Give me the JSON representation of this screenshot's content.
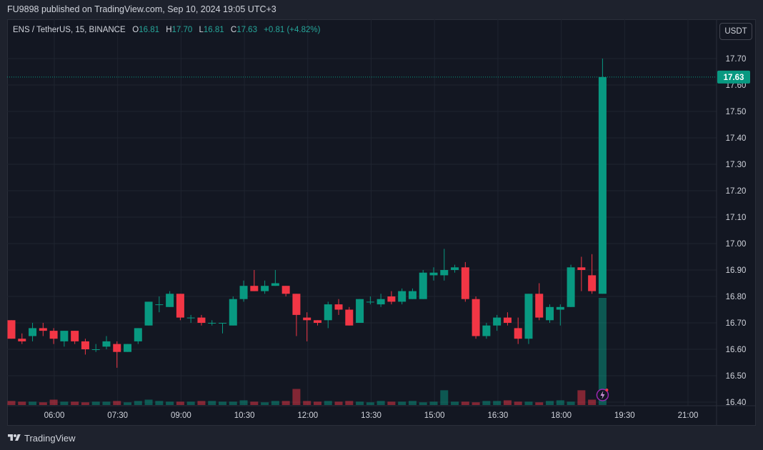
{
  "header": {
    "published_text": "FU9898 published on TradingView.com, Sep 10, 2024 19:05 UTC+3"
  },
  "legend": {
    "symbol": "ENS / TetherUS, 15, BINANCE",
    "open_label": "O",
    "open": "16.81",
    "high_label": "H",
    "high": "17.70",
    "low_label": "L",
    "low": "16.81",
    "close_label": "C",
    "close": "17.63",
    "change": "+0.81 (+4.82%)"
  },
  "currency_button": "USDT",
  "footer": {
    "brand": "TradingView"
  },
  "colors": {
    "up": "#089981",
    "down": "#f23645",
    "background": "#131722",
    "grid": "#1f2430",
    "text": "#d1d4dc"
  },
  "chart_data": {
    "type": "candlestick",
    "y_ticks": [
      "17.70",
      "17.60",
      "17.50",
      "17.40",
      "17.30",
      "17.20",
      "17.10",
      "17.00",
      "16.90",
      "16.80",
      "16.70",
      "16.60",
      "16.50",
      "16.40"
    ],
    "ylim": [
      16.4,
      17.7
    ],
    "x_ticks": [
      "06:00",
      "07:30",
      "09:00",
      "10:30",
      "12:00",
      "13:30",
      "15:00",
      "16:30",
      "18:00",
      "19:30",
      "21:00"
    ],
    "last_price_label": "17.63",
    "candles": [
      {
        "o": 16.71,
        "h": 16.71,
        "l": 16.64,
        "c": 16.64
      },
      {
        "o": 16.64,
        "h": 16.66,
        "l": 16.62,
        "c": 16.63
      },
      {
        "o": 16.65,
        "h": 16.7,
        "l": 16.63,
        "c": 16.68
      },
      {
        "o": 16.68,
        "h": 16.7,
        "l": 16.65,
        "c": 16.67
      },
      {
        "o": 16.67,
        "h": 16.68,
        "l": 16.62,
        "c": 16.64
      },
      {
        "o": 16.63,
        "h": 16.67,
        "l": 16.61,
        "c": 16.67
      },
      {
        "o": 16.67,
        "h": 16.67,
        "l": 16.62,
        "c": 16.63
      },
      {
        "o": 16.63,
        "h": 16.64,
        "l": 16.58,
        "c": 16.6
      },
      {
        "o": 16.6,
        "h": 16.62,
        "l": 16.59,
        "c": 16.6
      },
      {
        "o": 16.61,
        "h": 16.65,
        "l": 16.6,
        "c": 16.63
      },
      {
        "o": 16.62,
        "h": 16.63,
        "l": 16.53,
        "c": 16.59
      },
      {
        "o": 16.59,
        "h": 16.62,
        "l": 16.59,
        "c": 16.62
      },
      {
        "o": 16.63,
        "h": 16.68,
        "l": 16.62,
        "c": 16.68
      },
      {
        "o": 16.69,
        "h": 16.78,
        "l": 16.69,
        "c": 16.78
      },
      {
        "o": 16.77,
        "h": 16.8,
        "l": 16.74,
        "c": 16.77
      },
      {
        "o": 16.76,
        "h": 16.82,
        "l": 16.76,
        "c": 16.81
      },
      {
        "o": 16.81,
        "h": 16.81,
        "l": 16.71,
        "c": 16.72
      },
      {
        "o": 16.72,
        "h": 16.73,
        "l": 16.7,
        "c": 16.72
      },
      {
        "o": 16.72,
        "h": 16.73,
        "l": 16.69,
        "c": 16.7
      },
      {
        "o": 16.7,
        "h": 16.71,
        "l": 16.69,
        "c": 16.7
      },
      {
        "o": 16.7,
        "h": 16.7,
        "l": 16.66,
        "c": 16.7
      },
      {
        "o": 16.69,
        "h": 16.8,
        "l": 16.69,
        "c": 16.79
      },
      {
        "o": 16.79,
        "h": 16.86,
        "l": 16.78,
        "c": 16.84
      },
      {
        "o": 16.84,
        "h": 16.9,
        "l": 16.82,
        "c": 16.82
      },
      {
        "o": 16.82,
        "h": 16.86,
        "l": 16.81,
        "c": 16.84
      },
      {
        "o": 16.84,
        "h": 16.9,
        "l": 16.84,
        "c": 16.85
      },
      {
        "o": 16.84,
        "h": 16.84,
        "l": 16.8,
        "c": 16.81
      },
      {
        "o": 16.81,
        "h": 16.81,
        "l": 16.65,
        "c": 16.73
      },
      {
        "o": 16.72,
        "h": 16.74,
        "l": 16.63,
        "c": 16.71
      },
      {
        "o": 16.71,
        "h": 16.71,
        "l": 16.69,
        "c": 16.7
      },
      {
        "o": 16.71,
        "h": 16.78,
        "l": 16.68,
        "c": 16.77
      },
      {
        "o": 16.77,
        "h": 16.79,
        "l": 16.73,
        "c": 16.75
      },
      {
        "o": 16.75,
        "h": 16.76,
        "l": 16.69,
        "c": 16.69
      },
      {
        "o": 16.7,
        "h": 16.79,
        "l": 16.7,
        "c": 16.79
      },
      {
        "o": 16.78,
        "h": 16.8,
        "l": 16.77,
        "c": 16.78
      },
      {
        "o": 16.77,
        "h": 16.81,
        "l": 16.76,
        "c": 16.79
      },
      {
        "o": 16.8,
        "h": 16.82,
        "l": 16.77,
        "c": 16.78
      },
      {
        "o": 16.78,
        "h": 16.83,
        "l": 16.77,
        "c": 16.82
      },
      {
        "o": 16.79,
        "h": 16.83,
        "l": 16.79,
        "c": 16.82
      },
      {
        "o": 16.79,
        "h": 16.9,
        "l": 16.79,
        "c": 16.89
      },
      {
        "o": 16.88,
        "h": 16.91,
        "l": 16.86,
        "c": 16.89
      },
      {
        "o": 16.88,
        "h": 16.98,
        "l": 16.86,
        "c": 16.9
      },
      {
        "o": 16.9,
        "h": 16.92,
        "l": 16.89,
        "c": 16.91
      },
      {
        "o": 16.91,
        "h": 16.93,
        "l": 16.78,
        "c": 16.79
      },
      {
        "o": 16.79,
        "h": 16.8,
        "l": 16.64,
        "c": 16.65
      },
      {
        "o": 16.65,
        "h": 16.7,
        "l": 16.64,
        "c": 16.69
      },
      {
        "o": 16.69,
        "h": 16.73,
        "l": 16.67,
        "c": 16.72
      },
      {
        "o": 16.72,
        "h": 16.74,
        "l": 16.69,
        "c": 16.7
      },
      {
        "o": 16.68,
        "h": 16.72,
        "l": 16.62,
        "c": 16.64
      },
      {
        "o": 16.64,
        "h": 16.81,
        "l": 16.62,
        "c": 16.81
      },
      {
        "o": 16.81,
        "h": 16.85,
        "l": 16.71,
        "c": 16.72
      },
      {
        "o": 16.71,
        "h": 16.77,
        "l": 16.7,
        "c": 16.76
      },
      {
        "o": 16.75,
        "h": 16.77,
        "l": 16.69,
        "c": 16.76
      },
      {
        "o": 16.76,
        "h": 16.92,
        "l": 16.76,
        "c": 16.91
      },
      {
        "o": 16.91,
        "h": 16.95,
        "l": 16.82,
        "c": 16.9
      },
      {
        "o": 16.88,
        "h": 16.96,
        "l": 16.81,
        "c": 16.82
      },
      {
        "o": 16.81,
        "h": 17.7,
        "l": 16.81,
        "c": 17.63
      }
    ],
    "volume": [
      6,
      5,
      5,
      4,
      8,
      5,
      5,
      4,
      5,
      5,
      6,
      4,
      6,
      8,
      6,
      5,
      5,
      5,
      6,
      6,
      5,
      5,
      7,
      5,
      4,
      6,
      6,
      24,
      6,
      5,
      6,
      5,
      6,
      5,
      4,
      6,
      5,
      5,
      6,
      4,
      5,
      22,
      5,
      5,
      4,
      6,
      6,
      7,
      5,
      5,
      4,
      6,
      7,
      5,
      22,
      8,
      160
    ],
    "volume_max": 160
  }
}
